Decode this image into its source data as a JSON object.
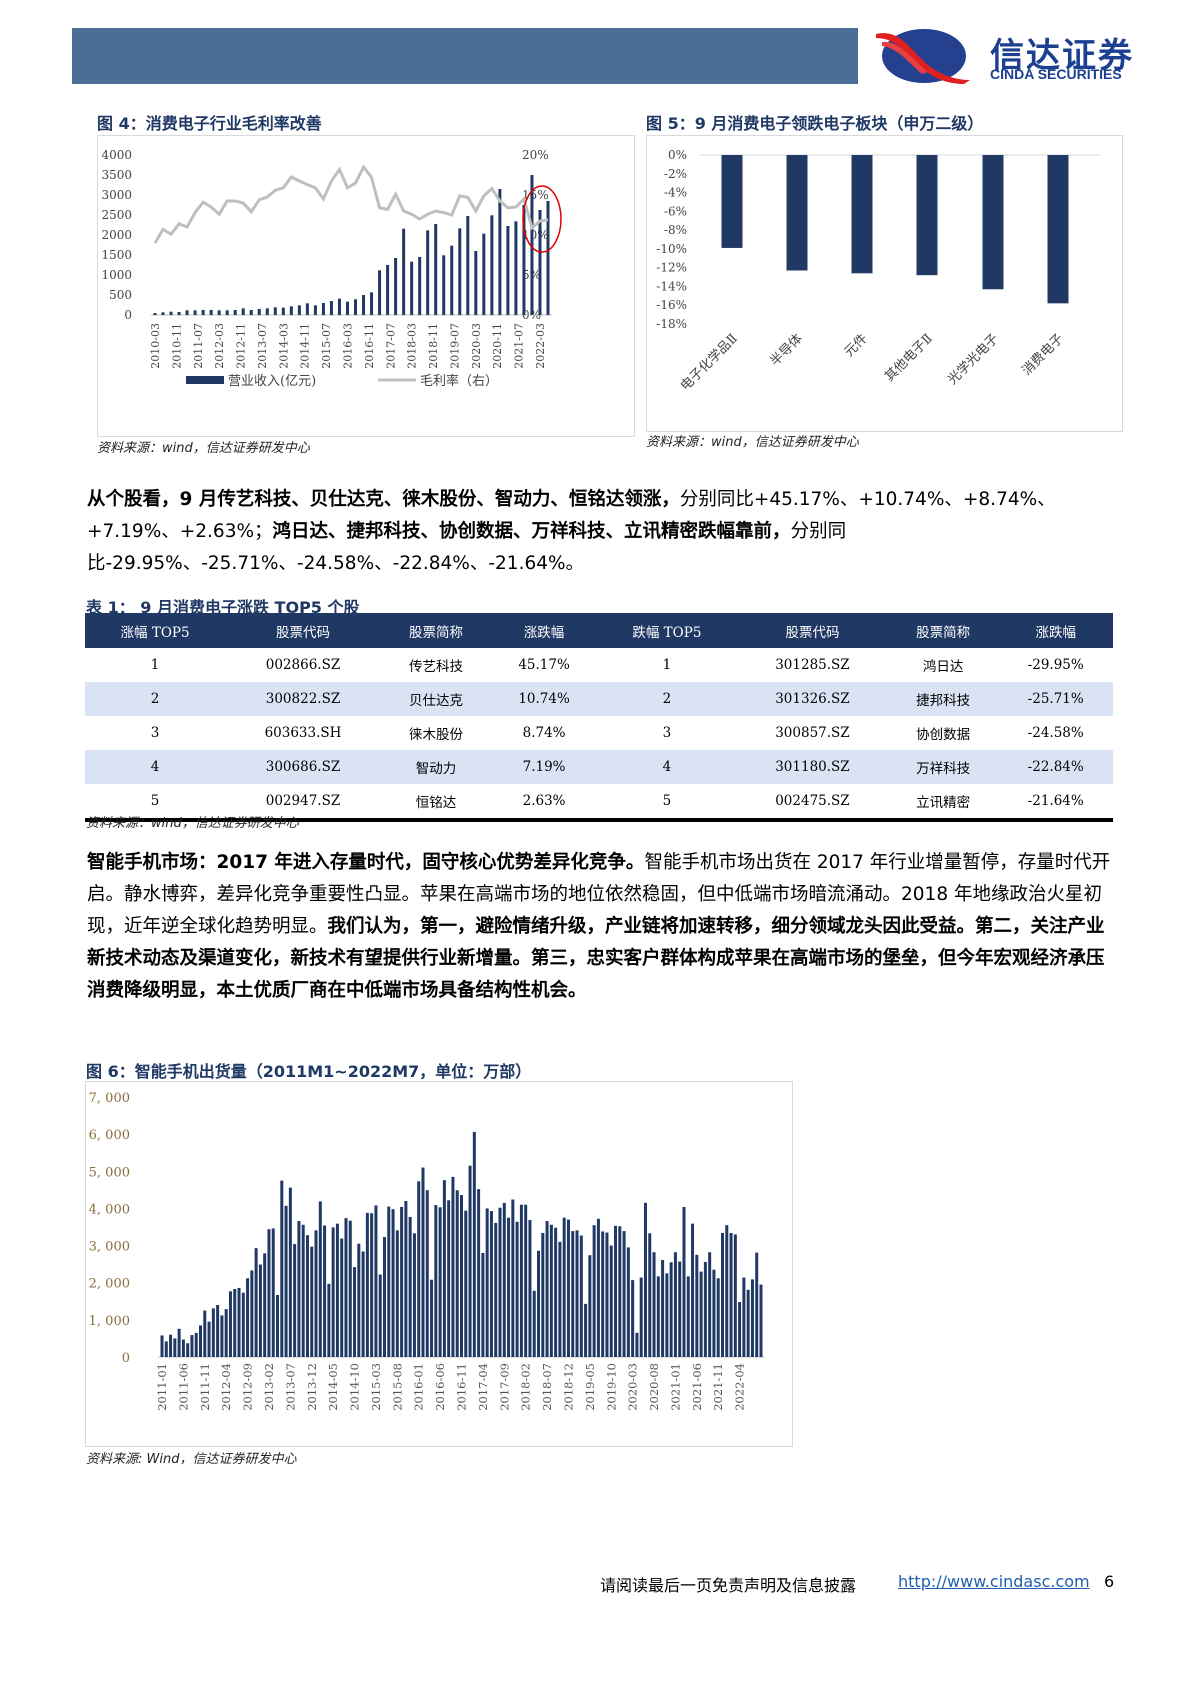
{
  "header": {
    "logo_cn": "信达证券",
    "logo_en": "CINDA SECURITIES",
    "bar_color": "#4a6e96"
  },
  "fig4": {
    "title": "图 4：消费电子行业毛利率改善",
    "source": "资料来源：wind，信达证券研发中心",
    "chart_data": {
      "type": "bar+line",
      "left_axis_ticks": [
        "0",
        "500",
        "1000",
        "1500",
        "2000",
        "2500",
        "3000",
        "3500",
        "4000"
      ],
      "right_axis_ticks": [
        "0%",
        "5%",
        "10%",
        "15%",
        "20%"
      ],
      "ylim_left": [
        0,
        4000
      ],
      "ylim_right": [
        0,
        20
      ],
      "x_tick_labels": [
        "2010-03",
        "2010-11",
        "2011-07",
        "2012-03",
        "2012-11",
        "2013-07",
        "2014-03",
        "2014-11",
        "2015-07",
        "2016-03",
        "2016-11",
        "2017-07",
        "2018-03",
        "2018-11",
        "2019-07",
        "2020-03",
        "2020-11",
        "2021-07",
        "2022-03"
      ],
      "x_start": "2010-03",
      "x_frequency": "quarterly",
      "series": [
        {
          "name": "营业收入(亿元)",
          "kind": "bar",
          "axis": "left",
          "color": "#1f3864",
          "values": [
            50,
            67,
            83,
            75,
            117,
            117,
            125,
            125,
            117,
            117,
            125,
            167,
            125,
            150,
            167,
            192,
            183,
            217,
            242,
            292,
            242,
            300,
            350,
            408,
            333,
            392,
            500,
            567,
            1117,
            1250,
            1425,
            2158,
            1333,
            1450,
            2117,
            2275,
            1492,
            1733,
            2167,
            2475,
            1600,
            2033,
            2492,
            3150,
            2225,
            2342,
            2750,
            3500,
            2625,
            2850
          ]
        },
        {
          "name": "毛利率（右）",
          "kind": "line",
          "axis": "right",
          "color": "#bfbfbf",
          "values": [
            9.0,
            10.7,
            10.1,
            11.4,
            11.0,
            12.8,
            14.1,
            13.5,
            12.6,
            14.25,
            14.25,
            14.0,
            12.9,
            14.4,
            14.75,
            15.6,
            15.9,
            17.25,
            16.75,
            16.3,
            15.9,
            14.5,
            16.75,
            18.2,
            15.9,
            16.5,
            18.5,
            17.2,
            13.4,
            13.2,
            15.1,
            13.0,
            12.6,
            12.0,
            12.6,
            13.0,
            12.8,
            12.5,
            14.9,
            14.7,
            13.0,
            14.9,
            15.8,
            14.25,
            13.4,
            13.5,
            14.5,
            10.9,
            11.75,
            11.9
          ]
        }
      ],
      "legend": "bottom",
      "annotation": "red circle highlighting latest quarters",
      "annotation_color": "#e00000"
    }
  },
  "fig5": {
    "title": "图 5：9 月消费电子领跌电子板块（申万二级）",
    "source": "资料来源：wind，信达证券研发中心",
    "chart_data": {
      "type": "bar",
      "categories": [
        "电子化学品Ⅱ",
        "半导体",
        "元件",
        "其他电子Ⅱ",
        "光学光电子",
        "消费电子"
      ],
      "values": [
        -9.9,
        -12.3,
        -12.6,
        -12.8,
        -14.3,
        -15.8
      ],
      "unit": "%",
      "ylim": [
        -18,
        0
      ],
      "y_ticks": [
        "0%",
        "-2%",
        "-4%",
        "-6%",
        "-8%",
        "-10%",
        "-12%",
        "-14%",
        "-16%",
        "-18%"
      ],
      "color": "#1f3864"
    }
  },
  "para1": {
    "bold1": "从个股看，9 月传艺科技、贝仕达克、徕木股份、智动力、恒铭达领涨，",
    "normal1": "分别同比+45.17%、+10.74%、+8.74%、+7.19%、+2.63%；",
    "bold2": "鸿日达、捷邦科技、协创数据、万祥科技、立讯精密跌幅靠前，",
    "normal2": "分别同比-29.95%、-25.71%、-24.58%、-22.84%、-21.64%。"
  },
  "table1": {
    "title": "表 1：  9 月消费电子涨跌 TOP5 个股",
    "headers": [
      "涨幅 TOP5",
      "股票代码",
      "股票简称",
      "涨跌幅",
      "跌幅 TOP5",
      "股票代码",
      "股票简称",
      "涨跌幅"
    ],
    "rows": [
      [
        "1",
        "002866.SZ",
        "传艺科技",
        "45.17%",
        "1",
        "301285.SZ",
        "鸿日达",
        "-29.95%"
      ],
      [
        "2",
        "300822.SZ",
        "贝仕达克",
        "10.74%",
        "2",
        "301326.SZ",
        "捷邦科技",
        "-25.71%"
      ],
      [
        "3",
        "603633.SH",
        "徕木股份",
        "8.74%",
        "3",
        "300857.SZ",
        "协创数据",
        "-24.58%"
      ],
      [
        "4",
        "300686.SZ",
        "智动力",
        "7.19%",
        "4",
        "301180.SZ",
        "万祥科技",
        "-22.84%"
      ],
      [
        "5",
        "002947.SZ",
        "恒铭达",
        "2.63%",
        "5",
        "002475.SZ",
        "立讯精密",
        "-21.64%"
      ]
    ],
    "source": "资料来源：wind，信达证券研发中心",
    "header_color": "#1f3864",
    "alt_row_color": "#dae3f3"
  },
  "para2": {
    "bold1": "智能手机市场：2017 年进入存量时代，固守核心优势差异化竞争。",
    "normal1": "智能手机市场出货在 2017 年行业增量暂停，存量时代开启。静水博弈，差异化竞争重要性凸显。苹果在高端市场的地位依然稳固，但中低端市场暗流涌动。2018 年地缘政治火星初现，近年逆全球化趋势明显。",
    "bold2": "我们认为，第一，避险情绪升级，产业链将加速转移，细分领域龙头因此受益。第二，关注产业新技术动态及渠道变化，新技术有望提供行业新增量。第三，忠实客户群体构成苹果在高端市场的堡垒，但今年宏观经济承压消费降级明显，本土优质厂商在中低端市场具备结构性机会。"
  },
  "fig6": {
    "title": "图 6：智能手机出货量（2011M1~2022M7，单位：万部）",
    "source": "资料来源: Wind，信达证券研发中心",
    "chart_data": {
      "type": "bar",
      "x_start": "2011-01",
      "x_end": "2022-07",
      "x_frequency": "monthly",
      "x_tick_labels": [
        "2011-01",
        "2011-06",
        "2011-11",
        "2012-04",
        "2012-09",
        "2013-02",
        "2013-07",
        "2013-12",
        "2014-05",
        "2014-10",
        "2015-03",
        "2015-08",
        "2016-01",
        "2016-06",
        "2016-11",
        "2017-04",
        "2017-09",
        "2018-02",
        "2018-07",
        "2018-12",
        "2019-05",
        "2019-10",
        "2020-03",
        "2020-08",
        "2021-01",
        "2021-06",
        "2021-11",
        "2022-04"
      ],
      "y_ticks": [
        "0",
        "1, 000",
        "2, 000",
        "3, 000",
        "4, 000",
        "5, 000",
        "6, 000",
        "7, 000"
      ],
      "ylim": [
        0,
        7000
      ],
      "unit": "万部",
      "color": "#1f3864",
      "values": [
        580,
        420,
        600,
        500,
        760,
        470,
        370,
        590,
        650,
        850,
        1250,
        950,
        1310,
        1400,
        1120,
        1290,
        1770,
        1830,
        1860,
        1730,
        2120,
        2330,
        2930,
        2490,
        2790,
        3440,
        3460,
        1670,
        4750,
        4070,
        4560,
        3040,
        3660,
        3560,
        3280,
        2970,
        3410,
        4190,
        3540,
        1970,
        3490,
        3590,
        3190,
        3740,
        3670,
        2420,
        3050,
        2840,
        3880,
        3870,
        4080,
        2220,
        3230,
        4050,
        3980,
        3410,
        4040,
        4200,
        3770,
        3330,
        4730,
        5100,
        4490,
        2080,
        4090,
        4030,
        4760,
        4220,
        4850,
        4490,
        4360,
        3940,
        5150,
        6060,
        4520,
        2800,
        4000,
        3930,
        3610,
        4020,
        4150,
        3750,
        4240,
        3640,
        4100,
        4100,
        3690,
        1780,
        2860,
        3340,
        3660,
        3560,
        3480,
        3100,
        3750,
        3700,
        3390,
        3410,
        3270,
        1430,
        2740,
        3550,
        3720,
        3380,
        3350,
        3000,
        3530,
        3520,
        3390,
        2950,
        2070,
        650,
        2140,
        4150,
        3330,
        2820,
        2170,
        2610,
        2250,
        2550,
        2820,
        2570,
        4040,
        2170,
        3590,
        2750,
        2300,
        2560,
        2820,
        2350,
        2120,
        3340,
        3550,
        3340,
        3300,
        1480,
        2140,
        1810,
        2090,
        2810,
        1950
      ]
    }
  },
  "footer": {
    "disclaimer": "请阅读最后一页免责声明及信息披露",
    "link": "http://www.cindasc.com",
    "page": "6"
  }
}
